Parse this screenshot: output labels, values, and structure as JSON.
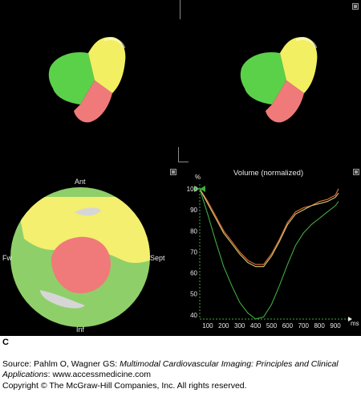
{
  "bullseye": {
    "labels": {
      "top": "Ant",
      "left": "Fw",
      "right": "Sept",
      "bottom": "Inf"
    }
  },
  "chart": {
    "title": "Volume (normalized)",
    "y_unit": "%",
    "x_unit": "ms"
  },
  "chart_data": {
    "type": "line",
    "title": "Volume (normalized)",
    "xlabel": "ms",
    "ylabel": "%",
    "xlim": [
      50,
      950
    ],
    "ylim": [
      38,
      100
    ],
    "x_ticks": [
      100,
      200,
      300,
      400,
      500,
      600,
      700,
      800,
      900
    ],
    "y_ticks": [
      40,
      50,
      60,
      70,
      80,
      90,
      100
    ],
    "series": [
      {
        "color": "#e8733a",
        "points": [
          [
            50,
            100
          ],
          [
            100,
            94
          ],
          [
            150,
            87
          ],
          [
            200,
            80
          ],
          [
            250,
            75
          ],
          [
            300,
            70
          ],
          [
            350,
            66
          ],
          [
            400,
            64
          ],
          [
            450,
            64
          ],
          [
            500,
            69
          ],
          [
            550,
            76
          ],
          [
            600,
            84
          ],
          [
            650,
            89
          ],
          [
            700,
            91
          ],
          [
            750,
            92
          ],
          [
            800,
            94
          ],
          [
            850,
            95
          ],
          [
            900,
            97
          ],
          [
            920,
            100
          ]
        ]
      },
      {
        "color": "#d8c870",
        "points": [
          [
            50,
            100
          ],
          [
            100,
            93
          ],
          [
            150,
            86
          ],
          [
            200,
            79
          ],
          [
            250,
            74
          ],
          [
            300,
            69
          ],
          [
            350,
            65
          ],
          [
            400,
            63
          ],
          [
            450,
            63
          ],
          [
            500,
            68
          ],
          [
            550,
            75
          ],
          [
            600,
            83
          ],
          [
            650,
            88
          ],
          [
            700,
            90
          ],
          [
            750,
            92
          ],
          [
            800,
            93
          ],
          [
            850,
            94
          ],
          [
            900,
            96
          ],
          [
            920,
            98
          ]
        ]
      },
      {
        "color": "#3faa3f",
        "points": [
          [
            50,
            100
          ],
          [
            100,
            88
          ],
          [
            150,
            75
          ],
          [
            200,
            63
          ],
          [
            250,
            54
          ],
          [
            300,
            46
          ],
          [
            350,
            41
          ],
          [
            400,
            38
          ],
          [
            450,
            39
          ],
          [
            500,
            45
          ],
          [
            550,
            54
          ],
          [
            600,
            64
          ],
          [
            650,
            73
          ],
          [
            700,
            79
          ],
          [
            750,
            83
          ],
          [
            800,
            86
          ],
          [
            850,
            89
          ],
          [
            900,
            92
          ],
          [
            920,
            94
          ]
        ]
      }
    ]
  },
  "caption": {
    "letter": "C",
    "source_prefix": "Source: Pahlm O, Wagner GS: ",
    "source_title": "Multimodal Cardiovascular Imaging: Principles and Clinical Applications",
    "source_suffix": ": www.accessmedicine.com",
    "copyright": "Copyright © The McGraw-Hill Companies, Inc. All rights reserved."
  }
}
